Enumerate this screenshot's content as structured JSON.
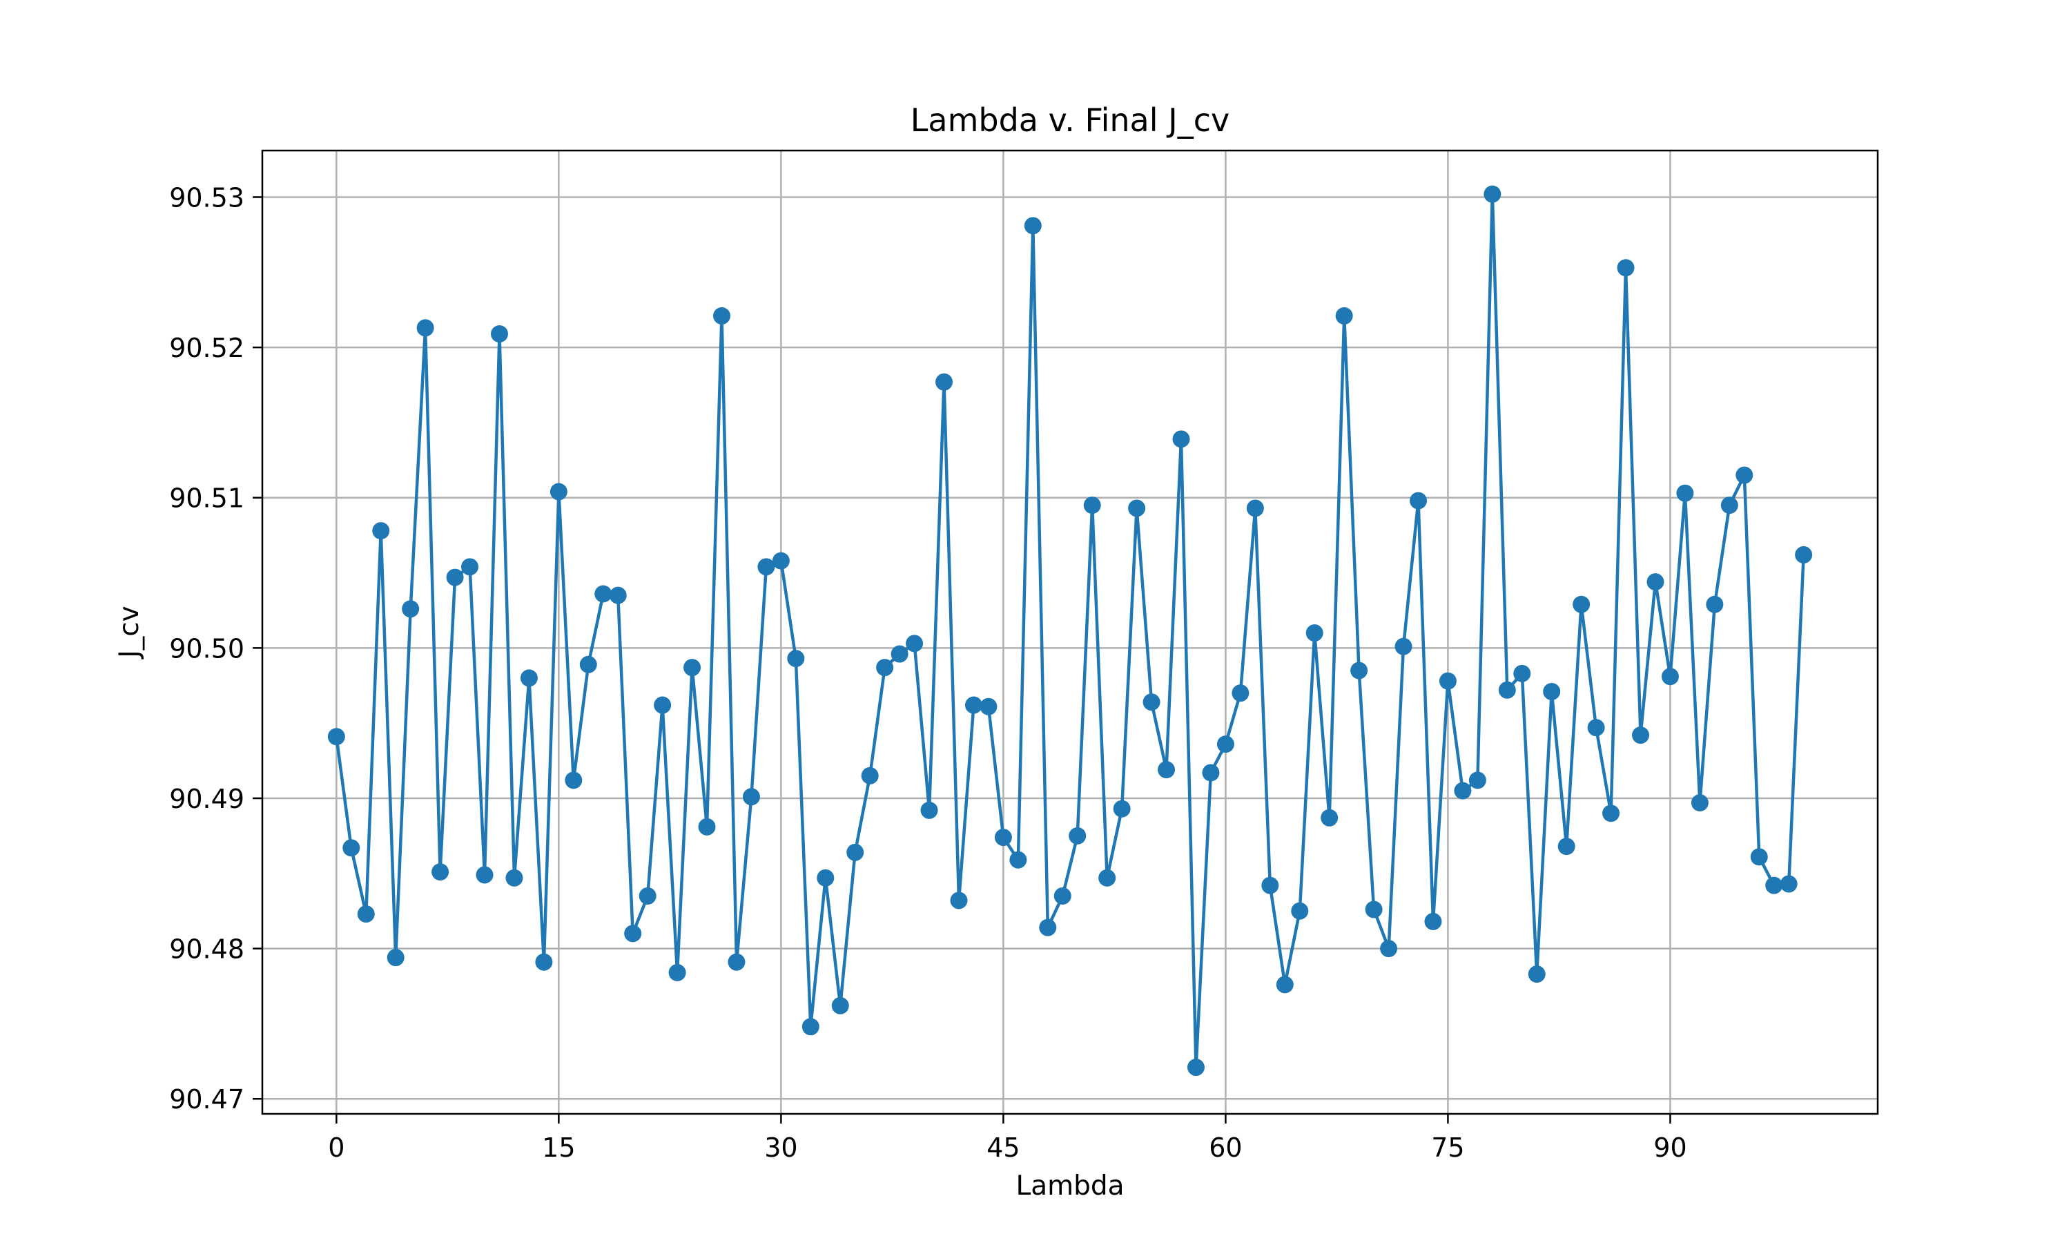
{
  "chart_data": {
    "type": "line",
    "title": "Lambda v. Final J_cv",
    "xlabel": "Lambda",
    "ylabel": "J_cv",
    "xlim": [
      -5,
      104
    ],
    "ylim": [
      90.469,
      90.5331
    ],
    "xticks": [
      0,
      15,
      30,
      45,
      60,
      75,
      90
    ],
    "yticks": [
      90.47,
      90.48,
      90.49,
      90.5,
      90.51,
      90.52,
      90.53
    ],
    "ytick_labels": [
      "90.47",
      "90.48",
      "90.49",
      "90.50",
      "90.51",
      "90.52",
      "90.53"
    ],
    "grid": true,
    "color": "#1f77b4",
    "marker": "circle",
    "x": [
      0,
      1,
      2,
      3,
      4,
      5,
      6,
      7,
      8,
      9,
      10,
      11,
      12,
      13,
      14,
      15,
      16,
      17,
      18,
      19,
      20,
      21,
      22,
      23,
      24,
      25,
      26,
      27,
      28,
      29,
      30,
      31,
      32,
      33,
      34,
      35,
      36,
      37,
      38,
      39,
      40,
      41,
      42,
      43,
      44,
      45,
      46,
      47,
      48,
      49,
      50,
      51,
      52,
      53,
      54,
      55,
      56,
      57,
      58,
      59,
      60,
      61,
      62,
      63,
      64,
      65,
      66,
      67,
      68,
      69,
      70,
      71,
      72,
      73,
      74,
      75,
      76,
      77,
      78,
      79,
      80,
      81,
      82,
      83,
      84,
      85,
      86,
      87,
      88,
      89,
      90,
      91,
      92,
      93,
      94,
      95,
      96,
      97,
      98,
      99
    ],
    "y": [
      90.4941,
      90.4867,
      90.4823,
      90.5078,
      90.4794,
      90.5026,
      90.5213,
      90.4851,
      90.5047,
      90.5054,
      90.4849,
      90.5209,
      90.4847,
      90.498,
      90.4791,
      90.5104,
      90.4912,
      90.4989,
      90.5036,
      90.5035,
      90.481,
      90.4835,
      90.4962,
      90.4784,
      90.4987,
      90.4881,
      90.5221,
      90.4791,
      90.4901,
      90.5054,
      90.5058,
      90.4993,
      90.4748,
      90.4847,
      90.4762,
      90.4864,
      90.4915,
      90.4987,
      90.4996,
      90.5003,
      90.4892,
      90.5177,
      90.4832,
      90.4962,
      90.4961,
      90.4874,
      90.4859,
      90.5281,
      90.4814,
      90.4835,
      90.4875,
      90.5095,
      90.4847,
      90.4893,
      90.5093,
      90.4964,
      90.4919,
      90.5139,
      90.4721,
      90.4917,
      90.4936,
      90.497,
      90.5093,
      90.4842,
      90.4776,
      90.4825,
      90.501,
      90.4887,
      90.5221,
      90.4985,
      90.4826,
      90.48,
      90.5001,
      90.5098,
      90.4818,
      90.4978,
      90.4905,
      90.4912,
      90.5302,
      90.4972,
      90.4983,
      90.4783,
      90.4971,
      90.4868,
      90.5029,
      90.4947,
      90.489,
      90.5253,
      90.4942,
      90.5044,
      90.4981,
      90.5103,
      90.4897,
      90.5029,
      90.5095,
      90.5115,
      90.4861,
      90.4842,
      90.4843,
      90.5062
    ]
  }
}
